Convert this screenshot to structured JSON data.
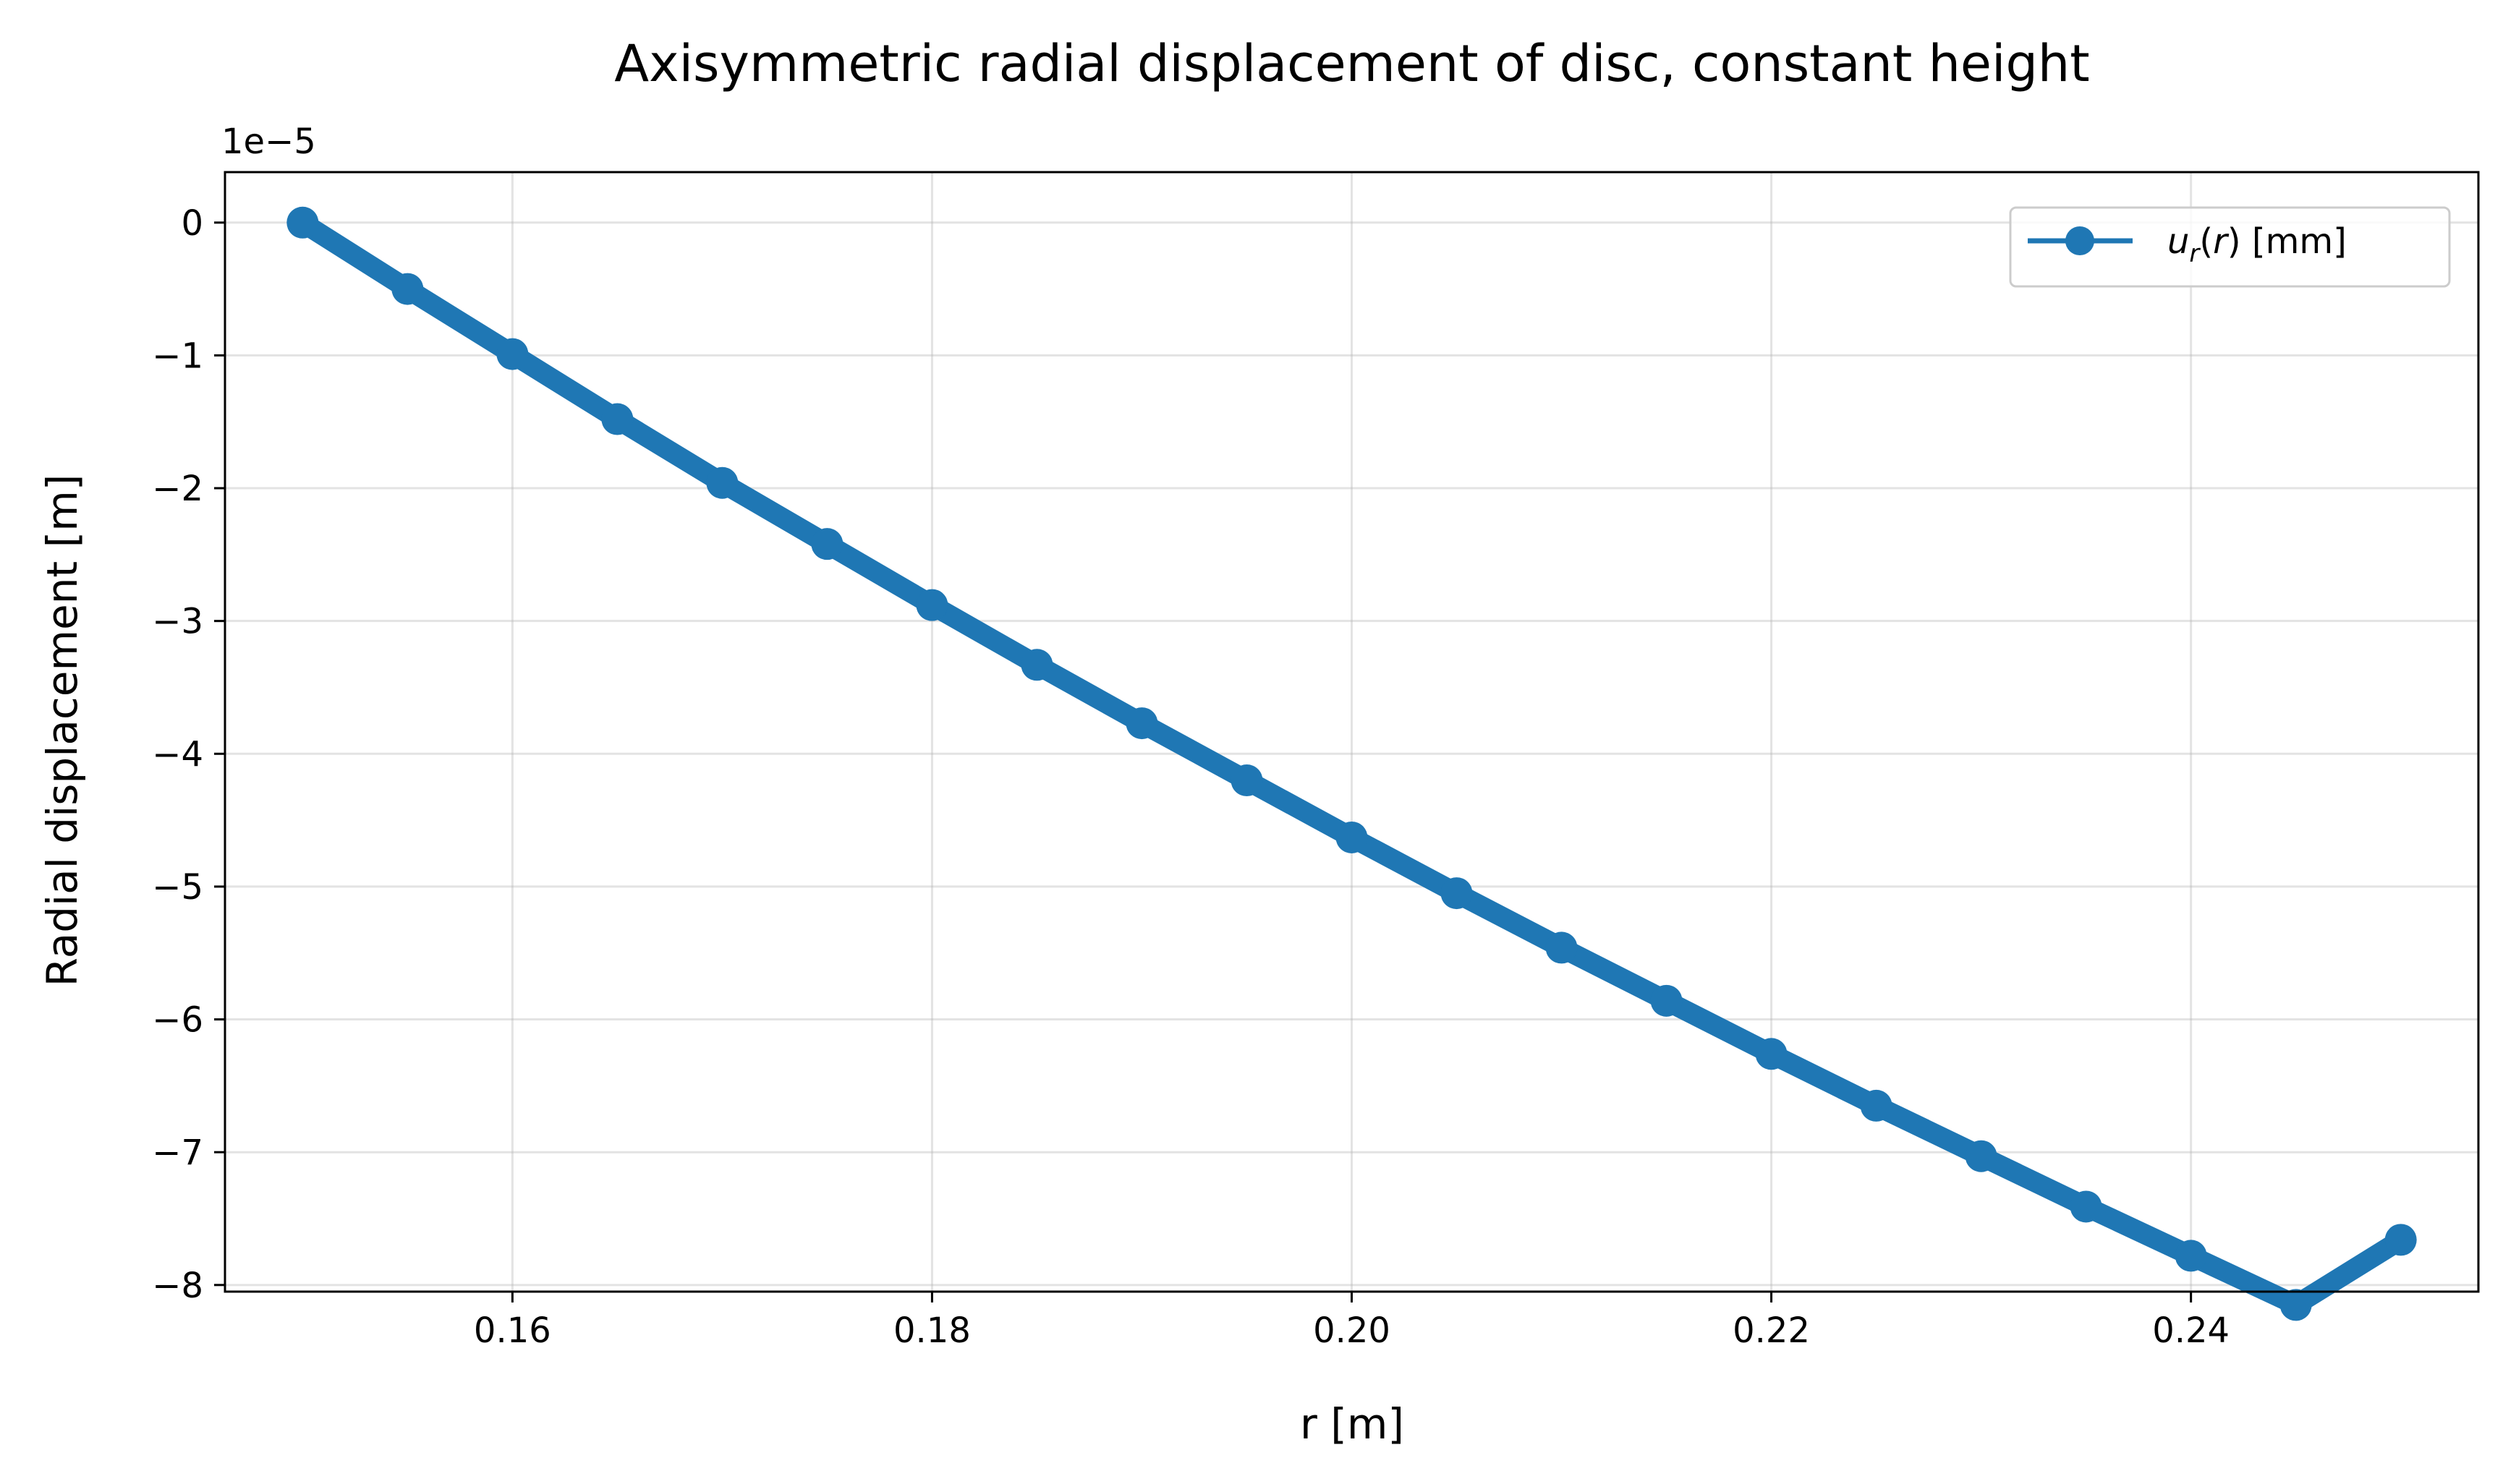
{
  "chart_data": {
    "type": "line",
    "title": "Axisymmetric radial displacement of disc, constant height",
    "xlabel": "r [m]",
    "ylabel": "Radial displacement [m]",
    "y_offset_label": "1e−5",
    "y_scale": 1e-05,
    "xlim": [
      0.1463,
      0.2537
    ],
    "ylim": [
      -8.05e-05,
      3.8e-06
    ],
    "x_ticks": [
      0.16,
      0.18,
      0.2,
      0.22,
      0.24
    ],
    "x_tick_labels": [
      "0.16",
      "0.18",
      "0.20",
      "0.22",
      "0.24"
    ],
    "y_ticks": [
      0,
      -1e-05,
      -2e-05,
      -3e-05,
      -4e-05,
      -5e-05,
      -6e-05,
      -7e-05,
      -8e-05
    ],
    "y_tick_labels": [
      "0",
      "−1",
      "−2",
      "−3",
      "−4",
      "−5",
      "−6",
      "−7",
      "−8"
    ],
    "grid": true,
    "legend_position": "top-right",
    "series": [
      {
        "name": "u_r(r) [mm]",
        "legend_parts": {
          "u": "u",
          "sub": "r",
          "rest": "(r) [mm]",
          "arg": "r"
        },
        "color": "#1f77b4",
        "marker": "circle",
        "x": [
          0.15,
          0.155,
          0.16,
          0.165,
          0.17,
          0.175,
          0.18,
          0.185,
          0.19,
          0.195,
          0.2,
          0.205,
          0.21,
          0.215,
          0.22,
          0.225,
          0.23,
          0.235,
          0.24,
          0.245,
          0.25
        ],
        "y": [
          0.0,
          -5e-06,
          -9.9e-06,
          -1.48e-05,
          -1.96e-05,
          -2.42e-05,
          -2.88e-05,
          -3.33e-05,
          -3.77e-05,
          -4.2e-05,
          -4.63e-05,
          -5.05e-05,
          -5.46e-05,
          -5.86e-05,
          -6.26e-05,
          -6.65e-05,
          -7.03e-05,
          -7.41e-05,
          -7.78e-05,
          -8.15e-05,
          -7.66e-05
        ]
      }
    ]
  }
}
